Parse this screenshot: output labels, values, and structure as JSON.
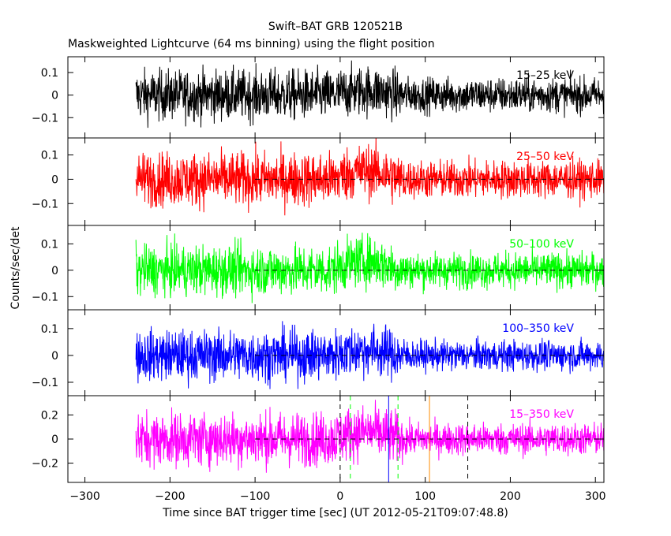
{
  "chart_data": {
    "type": "line",
    "title": "Swift–BAT GRB 120521B",
    "subtitle": "Maskweighted Lightcurve (64 ms binning) using the flight position",
    "xlabel": "Time since BAT trigger time [sec] (UT 2012-05-21T09:07:48.8)",
    "ylabel": "Counts/sec/det",
    "xlim": [
      -320,
      310
    ],
    "x_ticks": [
      "−300",
      "−200",
      "−100",
      "0",
      "100",
      "200",
      "300"
    ],
    "x_tick_values": [
      -300,
      -200,
      -100,
      0,
      100,
      200,
      300
    ],
    "data_start": -240,
    "data_end": 310,
    "grid": false,
    "panels": [
      {
        "band": "15–25 keV",
        "color": "#000000",
        "ylim": [
          -0.19,
          0.17
        ],
        "y_ticks": [
          "0.1",
          "0",
          "−0.1"
        ],
        "y_tick_values": [
          0.1,
          0,
          -0.1
        ],
        "noise_amplitude_pre": 0.1,
        "noise_amplitude_post": 0.07,
        "emission_excess": 0.02,
        "zero_line_from": null
      },
      {
        "band": "25–50 keV",
        "color": "#ff0000",
        "ylim": [
          -0.19,
          0.17
        ],
        "y_ticks": [
          "0.1",
          "0",
          "−0.1"
        ],
        "y_tick_values": [
          0.1,
          0,
          -0.1
        ],
        "noise_amplitude_pre": 0.1,
        "noise_amplitude_post": 0.07,
        "emission_excess": 0.035,
        "zero_line_from": -100
      },
      {
        "band": "50–100 keV",
        "color": "#00ff00",
        "ylim": [
          -0.15,
          0.17
        ],
        "y_ticks": [
          "0.1",
          "0",
          "−0.1"
        ],
        "y_tick_values": [
          0.1,
          0,
          -0.1
        ],
        "noise_amplitude_pre": 0.085,
        "noise_amplitude_post": 0.06,
        "emission_excess": 0.035,
        "zero_line_from": -100
      },
      {
        "band": "100–350 keV",
        "color": "#0000ff",
        "ylim": [
          -0.15,
          0.17
        ],
        "y_ticks": [
          "0.1",
          "0",
          "−0.1"
        ],
        "y_tick_values": [
          0.1,
          0,
          -0.1
        ],
        "noise_amplitude_pre": 0.085,
        "noise_amplitude_post": 0.05,
        "emission_excess": 0.02,
        "zero_line_from": -100
      },
      {
        "band": "15–350 keV",
        "color": "#ff00ff",
        "ylim": [
          -0.36,
          0.36
        ],
        "y_ticks": [
          "0.2",
          "0",
          "−0.2"
        ],
        "y_tick_values": [
          0.2,
          0,
          -0.2
        ],
        "noise_amplitude_pre": 0.2,
        "noise_amplitude_post": 0.12,
        "emission_excess": 0.06,
        "zero_line_from": -100
      }
    ],
    "emission_interval": [
      0,
      70
    ],
    "markers": [
      {
        "x": 0,
        "color": "#000000",
        "style": "dashed"
      },
      {
        "x": 12,
        "color": "#00ff00",
        "style": "dashed"
      },
      {
        "x": 57,
        "color": "#0000ff",
        "style": "solid"
      },
      {
        "x": 68,
        "color": "#00ff00",
        "style": "dashed"
      },
      {
        "x": 105,
        "color": "#ff8c00",
        "style": "solid"
      },
      {
        "x": 150,
        "color": "#000000",
        "style": "dashed"
      }
    ]
  }
}
